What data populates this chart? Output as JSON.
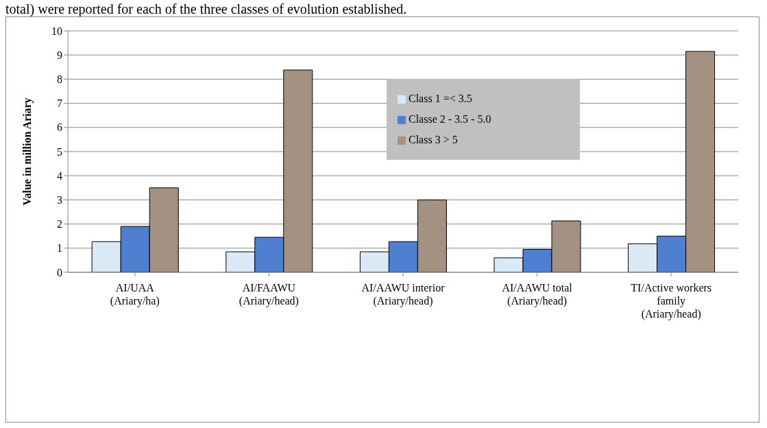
{
  "chart_data": {
    "type": "bar",
    "annotations": [
      "total) were reported for each of the three classes of evolution established."
    ],
    "ylabel": "Value in million Ariary",
    "categories": [
      "AI/UAA\n(Ariary/ha)",
      "AI/FAAWU\n(Ariary/head)",
      "AI/AAWU interior\n(Ariary/head)",
      "AI/AAWU total\n(Ariary/head)",
      "TI/Active workers\nfamily\n(Ariary/head)"
    ],
    "series": [
      {
        "name": "Class 1 =< 3.5",
        "color": "#dbe9f7",
        "values": [
          1.27,
          0.85,
          0.85,
          0.6,
          1.18
        ]
      },
      {
        "name": "Classe 2 - 3.5 - 5.0",
        "color": "#4f7fd0",
        "values": [
          1.9,
          1.45,
          1.27,
          0.95,
          1.5
        ]
      },
      {
        "name": "Class 3 > 5",
        "color": "#a39282",
        "values": [
          3.5,
          8.38,
          3.0,
          2.13,
          9.15
        ]
      }
    ],
    "ylim": [
      0,
      10
    ],
    "yticks": [
      0,
      1,
      2,
      3,
      4,
      5,
      6,
      7,
      8,
      9,
      10
    ],
    "grid": "y",
    "legend": "top"
  }
}
